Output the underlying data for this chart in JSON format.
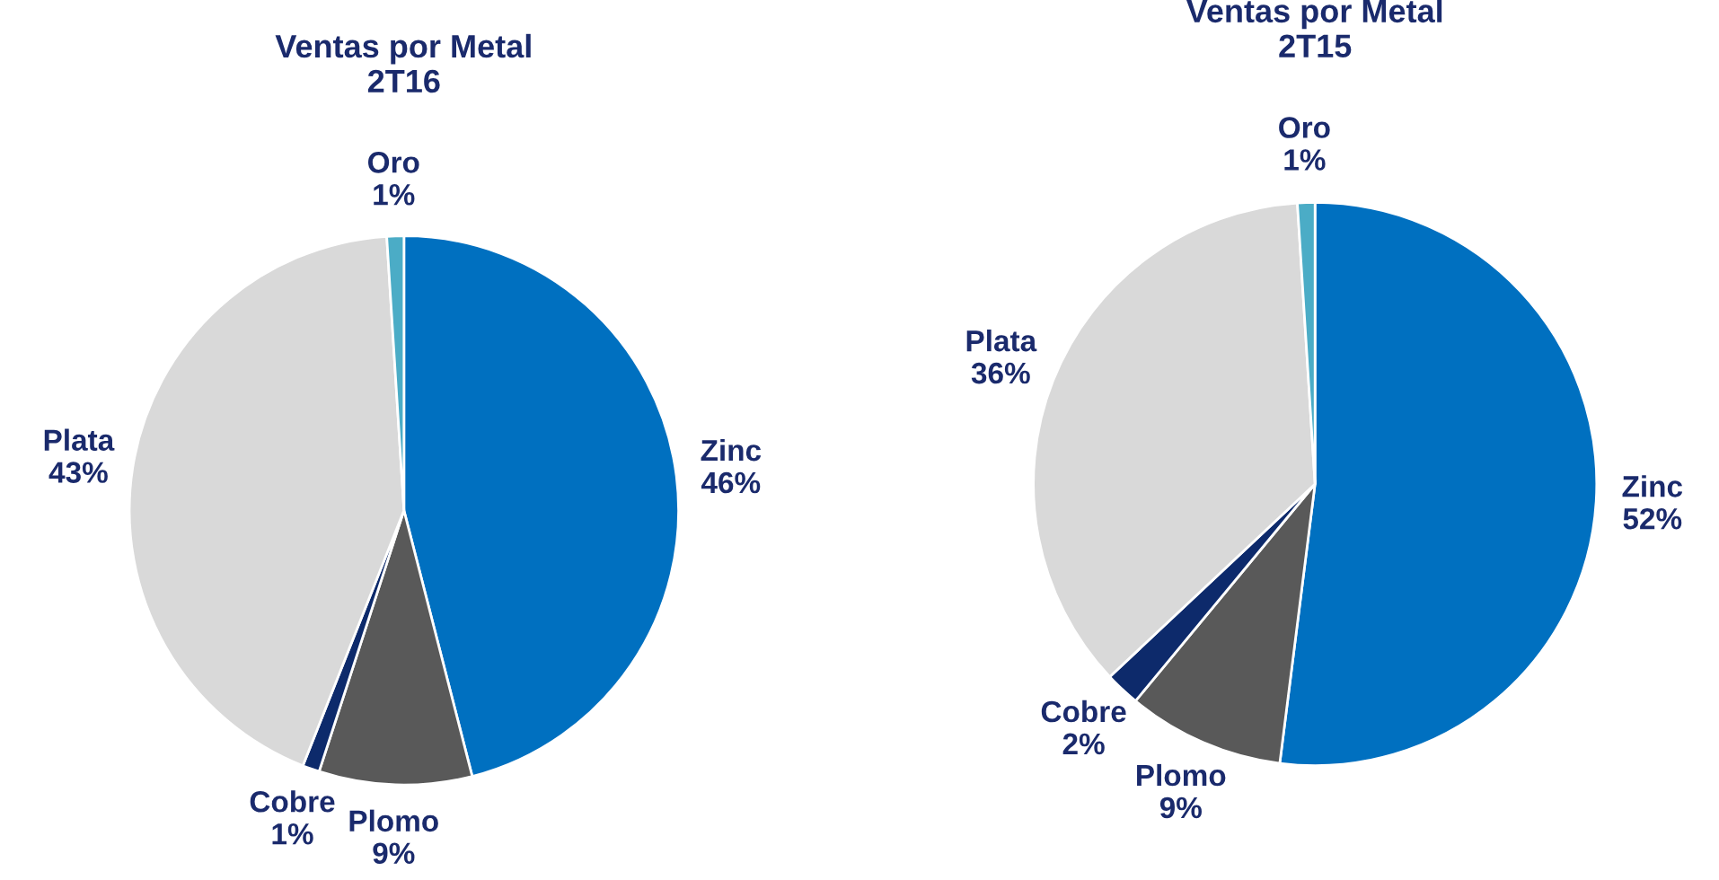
{
  "chart_data": [
    {
      "type": "pie",
      "title": "Ventas por Metal\n2T16",
      "categories": [
        "Zinc",
        "Plomo",
        "Cobre",
        "Plata",
        "Oro"
      ],
      "values": [
        46,
        9,
        1,
        43,
        1
      ],
      "value_labels": [
        "46%",
        "9%",
        "1%",
        "43%",
        "1%"
      ],
      "colors": [
        "#0070c0",
        "#595959",
        "#0d2a6b",
        "#d9d9d9",
        "#4bacc6"
      ]
    },
    {
      "type": "pie",
      "title": "Ventas por Metal\n2T15",
      "categories": [
        "Zinc",
        "Plomo",
        "Cobre",
        "Plata",
        "Oro"
      ],
      "values": [
        52,
        9,
        2,
        36,
        1
      ],
      "value_labels": [
        "52%",
        "9%",
        "2%",
        "36%",
        "1%"
      ],
      "colors": [
        "#0070c0",
        "#595959",
        "#0d2a6b",
        "#d9d9d9",
        "#4bacc6"
      ]
    }
  ]
}
